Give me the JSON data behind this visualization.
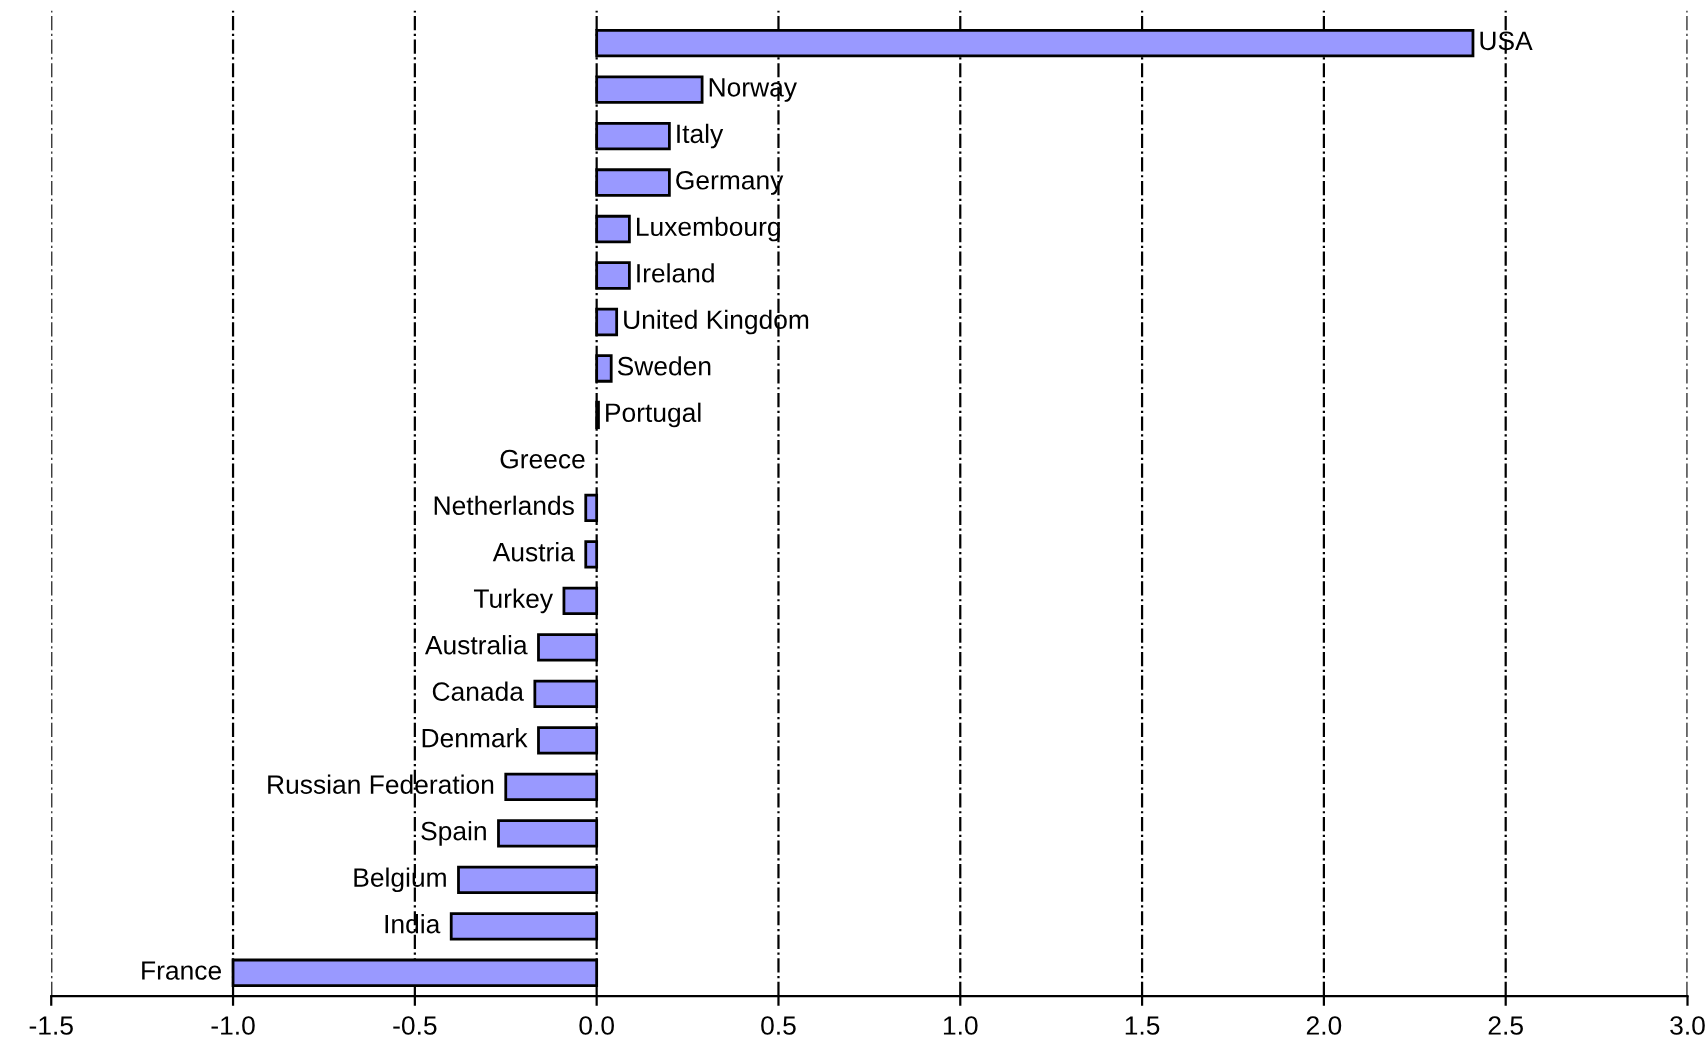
{
  "chart_data": {
    "type": "bar",
    "orientation": "horizontal",
    "categories": [
      "USA",
      "Norway",
      "Italy",
      "Germany",
      "Luxembourg",
      "Ireland",
      "United Kingdom",
      "Sweden",
      "Portugal",
      "Greece",
      "Netherlands",
      "Austria",
      "Turkey",
      "Australia",
      "Canada",
      "Denmark",
      "Russian Federation",
      "Spain",
      "Belgium",
      "India",
      "France"
    ],
    "values": [
      2.41,
      0.29,
      0.2,
      0.2,
      0.09,
      0.09,
      0.055,
      0.04,
      0.005,
      0,
      -0.03,
      -0.03,
      -0.09,
      -0.16,
      -0.17,
      -0.16,
      -0.25,
      -0.27,
      -0.38,
      -0.4,
      -1.0
    ],
    "color": "#9999ff",
    "xlim": [
      -1.5,
      3.0
    ],
    "xticks": [
      {
        "value": -1.5,
        "label": "-1.5"
      },
      {
        "value": -1.0,
        "label": "-1.0"
      },
      {
        "value": -0.5,
        "label": "-0.5"
      },
      {
        "value": 0,
        "label": "0.0"
      },
      {
        "value": 0.5,
        "label": "0.5"
      },
      {
        "value": 1.0,
        "label": "1.0"
      },
      {
        "value": 1.5,
        "label": "1.5"
      },
      {
        "value": 2.0,
        "label": "2.0"
      },
      {
        "value": 2.5,
        "label": "2.5"
      },
      {
        "value": 3.0,
        "label": "3.0"
      }
    ],
    "grid": "x",
    "legend": false
  }
}
